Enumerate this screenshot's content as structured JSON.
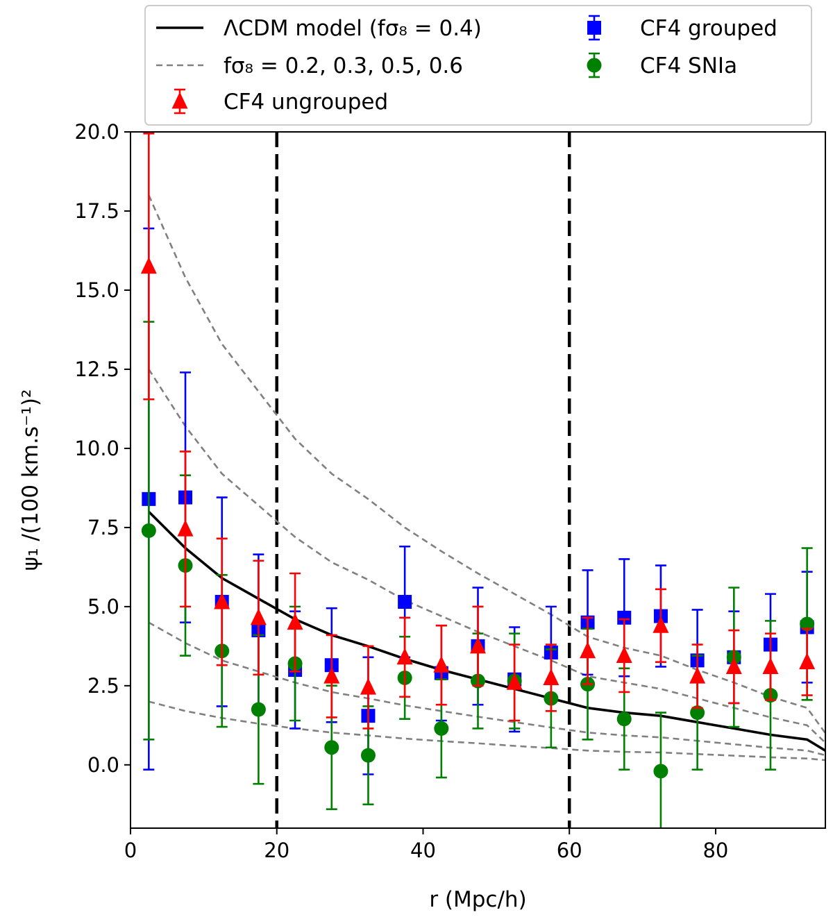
{
  "chart_data": {
    "type": "scatter",
    "xlabel": "r (Mpc/h)",
    "ylabel": "ψ₁ /(100 km.s⁻¹)²",
    "xlim": [
      0,
      95
    ],
    "ylim": [
      -2,
      20
    ],
    "x_ticks": [
      0,
      20,
      40,
      60,
      80
    ],
    "x_tick_labels": [
      "0",
      "20",
      "40",
      "60",
      "80"
    ],
    "y_ticks": [
      0,
      2.5,
      5,
      7.5,
      10,
      12.5,
      15,
      17.5,
      20
    ],
    "y_tick_labels": [
      "0.0",
      "2.5",
      "5.0",
      "7.5",
      "10.0",
      "12.5",
      "15.0",
      "17.5",
      "20.0"
    ],
    "grid": false,
    "legend_position": "top (above plot)",
    "vertical_lines": [
      20,
      60
    ],
    "lines": [
      {
        "legend": "ΛCDM model (fσ₈ = 0.4)",
        "style": "solid",
        "color": "#000000",
        "x": [
          2.5,
          7.5,
          12.5,
          17.5,
          22.5,
          27.5,
          32.5,
          37.5,
          42.5,
          47.5,
          52.5,
          57.5,
          62.5,
          67.5,
          72.5,
          77.5,
          82.5,
          87.5,
          92.5,
          95
        ],
        "y": [
          8.0,
          6.85,
          5.9,
          5.25,
          4.6,
          4.1,
          3.75,
          3.35,
          3.0,
          2.7,
          2.4,
          2.1,
          1.8,
          1.65,
          1.55,
          1.35,
          1.15,
          0.95,
          0.8,
          0.45
        ]
      },
      {
        "legend": "fσ₈ = 0.2, 0.3, 0.5, 0.6",
        "style": "dashed",
        "color": "#808080",
        "x": [
          2.5,
          7.5,
          12.5,
          17.5,
          22.5,
          27.5,
          32.5,
          37.5,
          42.5,
          47.5,
          52.5,
          57.5,
          62.5,
          67.5,
          72.5,
          77.5,
          82.5,
          87.5,
          92.5,
          95
        ],
        "y": [
          2.0,
          1.7,
          1.48,
          1.3,
          1.15,
          1.02,
          0.93,
          0.83,
          0.75,
          0.68,
          0.6,
          0.53,
          0.45,
          0.41,
          0.39,
          0.34,
          0.29,
          0.24,
          0.2,
          0.15
        ]
      },
      {
        "legend": "",
        "style": "dashed",
        "color": "#808080",
        "x": [
          2.5,
          7.5,
          12.5,
          17.5,
          22.5,
          27.5,
          32.5,
          37.5,
          42.5,
          47.5,
          52.5,
          57.5,
          62.5,
          67.5,
          72.5,
          77.5,
          82.5,
          87.5,
          92.5,
          95
        ],
        "y": [
          4.5,
          3.85,
          3.3,
          2.95,
          2.6,
          2.3,
          2.1,
          1.88,
          1.7,
          1.52,
          1.35,
          1.18,
          1.02,
          0.93,
          0.87,
          0.76,
          0.65,
          0.54,
          0.45,
          0.3
        ]
      },
      {
        "legend": "",
        "style": "dashed",
        "color": "#808080",
        "x": [
          2.5,
          7.5,
          12.5,
          17.5,
          22.5,
          27.5,
          32.5,
          37.5,
          42.5,
          47.5,
          52.5,
          57.5,
          62.5,
          67.5,
          72.5,
          77.5,
          82.5,
          87.5,
          92.5,
          95
        ],
        "y": [
          12.5,
          10.7,
          9.2,
          8.2,
          7.2,
          6.4,
          5.85,
          5.2,
          4.7,
          4.2,
          3.75,
          3.3,
          2.8,
          2.6,
          2.4,
          2.1,
          1.8,
          1.5,
          1.25,
          0.7
        ]
      },
      {
        "legend": "",
        "style": "dashed",
        "color": "#808080",
        "x": [
          2.5,
          7.5,
          12.5,
          17.5,
          22.5,
          27.5,
          32.5,
          37.5,
          42.5,
          47.5,
          52.5,
          57.5,
          62.5,
          67.5,
          72.5,
          77.5,
          82.5,
          87.5,
          92.5,
          95
        ],
        "y": [
          18.0,
          15.4,
          13.3,
          11.8,
          10.3,
          9.2,
          8.4,
          7.5,
          6.75,
          6.05,
          5.4,
          4.75,
          4.05,
          3.7,
          3.45,
          3.0,
          2.6,
          2.15,
          1.8,
          1.0
        ]
      }
    ],
    "series": [
      {
        "name": "CF4 grouped",
        "marker": "square",
        "color": "#0000ff",
        "x": [
          2.5,
          7.5,
          12.5,
          17.5,
          22.5,
          27.5,
          32.5,
          37.5,
          42.5,
          47.5,
          52.5,
          57.5,
          62.5,
          67.5,
          72.5,
          77.5,
          82.5,
          87.5,
          92.5
        ],
        "y": [
          8.4,
          8.45,
          5.15,
          4.25,
          3.0,
          3.15,
          1.55,
          5.15,
          2.9,
          3.75,
          2.7,
          3.55,
          4.5,
          4.65,
          4.7,
          3.3,
          3.4,
          3.8,
          4.35
        ],
        "err": [
          8.55,
          3.95,
          3.3,
          2.4,
          1.85,
          1.8,
          1.85,
          1.75,
          1.5,
          1.85,
          1.65,
          1.45,
          1.65,
          1.85,
          1.6,
          1.6,
          1.45,
          1.6,
          1.75
        ]
      },
      {
        "name": "CF4 SNIa",
        "marker": "circle",
        "color": "#008000",
        "x": [
          2.5,
          7.5,
          12.5,
          17.5,
          22.5,
          27.5,
          32.5,
          37.5,
          42.5,
          47.5,
          52.5,
          57.5,
          62.5,
          67.5,
          72.5,
          77.5,
          82.5,
          87.5,
          92.5
        ],
        "y": [
          7.4,
          6.3,
          3.6,
          1.75,
          3.2,
          0.55,
          0.3,
          2.75,
          1.15,
          2.65,
          2.65,
          2.1,
          2.55,
          1.45,
          -0.2,
          1.65,
          3.4,
          2.2,
          4.45
        ],
        "err": [
          6.6,
          2.85,
          2.4,
          2.35,
          1.8,
          1.95,
          1.55,
          1.3,
          1.55,
          1.5,
          1.5,
          1.55,
          1.75,
          1.6,
          1.85,
          1.8,
          2.2,
          2.35,
          2.4
        ]
      },
      {
        "name": "CF4 ungrouped",
        "marker": "triangle",
        "color": "#ff0000",
        "x": [
          2.5,
          7.5,
          12.5,
          17.5,
          22.5,
          27.5,
          32.5,
          37.5,
          42.5,
          47.5,
          52.5,
          57.5,
          62.5,
          67.5,
          72.5,
          77.5,
          82.5,
          87.5,
          92.5
        ],
        "y": [
          15.75,
          7.45,
          5.15,
          4.65,
          4.5,
          2.8,
          2.45,
          3.4,
          3.15,
          3.75,
          2.6,
          2.75,
          3.6,
          3.45,
          4.4,
          2.8,
          3.1,
          3.1,
          3.25
        ],
        "err": [
          4.2,
          2.45,
          2.0,
          1.8,
          1.55,
          1.3,
          1.3,
          1.25,
          1.25,
          1.25,
          1.2,
          1.05,
          1.05,
          1.15,
          1.15,
          1.0,
          1.15,
          1.05,
          1.05
        ]
      }
    ]
  }
}
